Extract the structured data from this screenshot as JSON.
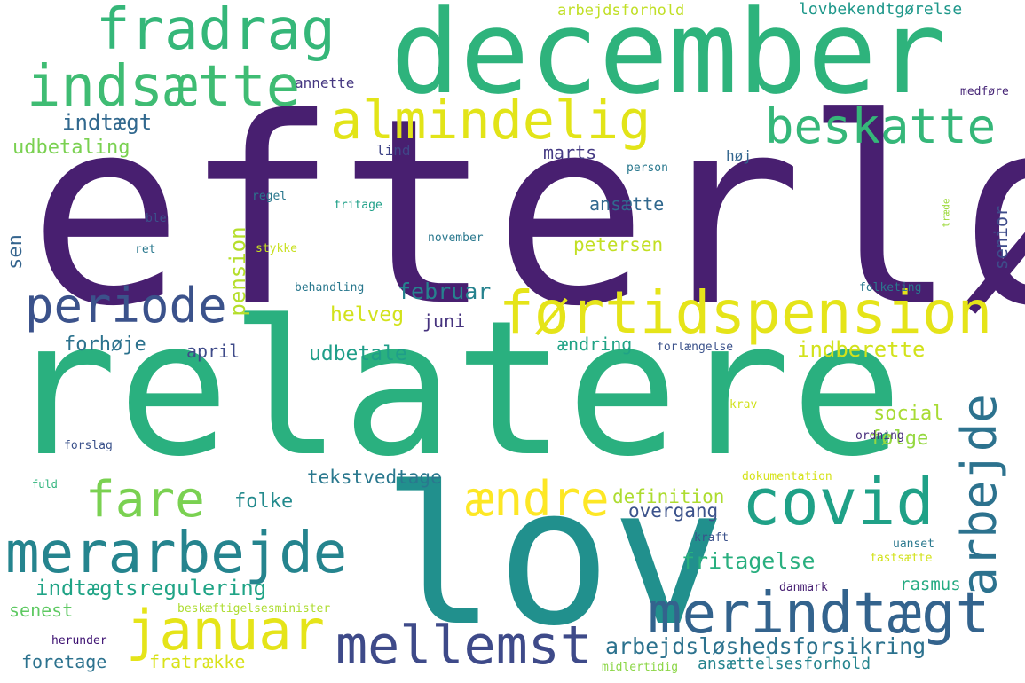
{
  "word_cloud": {
    "palette": [
      "#440154",
      "#3b528b",
      "#21918c",
      "#5ec962",
      "#fde725"
    ],
    "words": [
      {
        "id": "efterloen",
        "text": "efterløn",
        "color": "#481f70",
        "rank": 1
      },
      {
        "id": "relatere",
        "text": "relatere",
        "color": "#2ab07f",
        "rank": 2
      },
      {
        "id": "lov",
        "text": "lov",
        "color": "#21908d",
        "rank": 3
      },
      {
        "id": "december",
        "text": "december",
        "color": "#2eb37c",
        "rank": 4
      },
      {
        "id": "foertidspension",
        "text": "førtidspension",
        "color": "#e5e419",
        "rank": 5
      },
      {
        "id": "merindtaegt",
        "text": "merindtægt",
        "color": "#33638d",
        "rank": 6
      },
      {
        "id": "merarbejde",
        "text": "merarbejde",
        "color": "#25848e",
        "rank": 7
      },
      {
        "id": "covid",
        "text": "covid",
        "color": "#1fa187",
        "rank": 8
      },
      {
        "id": "fradrag",
        "text": "fradrag",
        "color": "#35b779",
        "rank": 9
      },
      {
        "id": "indsaette",
        "text": "indsætte",
        "color": "#3fbc73",
        "rank": 10
      },
      {
        "id": "almindelig",
        "text": "almindelig",
        "color": "#e2e418",
        "rank": 11
      },
      {
        "id": "arbejde",
        "text": "arbejde",
        "color": "#2c728e",
        "rank": 12
      },
      {
        "id": "mellemst",
        "text": "mellemst",
        "color": "#3e4a89",
        "rank": 13
      },
      {
        "id": "januar",
        "text": "januar",
        "color": "#e5e419",
        "rank": 14
      },
      {
        "id": "beskatte",
        "text": "beskatte",
        "color": "#35b779",
        "rank": 15
      },
      {
        "id": "periode",
        "text": "periode",
        "color": "#3b528b",
        "rank": 16
      },
      {
        "id": "aendre",
        "text": "ændre",
        "color": "#fde725",
        "rank": 17
      },
      {
        "id": "fare",
        "text": "fare",
        "color": "#7ad151",
        "rank": 18
      },
      {
        "id": "arbejdsloeshedsforsikring",
        "text": "arbejdsløshedsforsikring",
        "color": "#2c728e",
        "rank": 19
      },
      {
        "id": "indtaegtsregulering",
        "text": "indtægtsregulering",
        "color": "#20a486",
        "rank": 20
      },
      {
        "id": "fritagelse",
        "text": "fritagelse",
        "color": "#29af7f",
        "rank": 21
      },
      {
        "id": "indberette",
        "text": "indberette",
        "color": "#d2e21b",
        "rank": 22
      },
      {
        "id": "pension",
        "text": "pension",
        "color": "#b5de2b",
        "rank": 23
      },
      {
        "id": "indtaegt",
        "text": "indtægt",
        "color": "#31688e",
        "rank": 24
      },
      {
        "id": "udbetaling",
        "text": "udbetaling",
        "color": "#7ad151",
        "rank": 25
      },
      {
        "id": "helveg",
        "text": "helveg",
        "color": "#d2e21b",
        "rank": 26
      },
      {
        "id": "februar",
        "text": "februar",
        "color": "#26828e",
        "rank": 27
      },
      {
        "id": "udbetale",
        "text": "udbetale",
        "color": "#1f9e89",
        "rank": 28
      },
      {
        "id": "forhoeje",
        "text": "forhøje",
        "color": "#2c728e",
        "rank": 29
      },
      {
        "id": "folke",
        "text": "folke",
        "color": "#238a8d",
        "rank": 30
      },
      {
        "id": "social",
        "text": "social",
        "color": "#a8db34",
        "rank": 31
      },
      {
        "id": "foelge",
        "text": "følge",
        "color": "#95d840",
        "rank": 32
      },
      {
        "id": "tekstvedtage",
        "text": "tekstvedtage",
        "color": "#2a788e",
        "rank": 33
      },
      {
        "id": "definition",
        "text": "definition",
        "color": "#addc30",
        "rank": 34
      },
      {
        "id": "overgang",
        "text": "overgang",
        "color": "#3b528b",
        "rank": 35
      },
      {
        "id": "rasmus",
        "text": "rasmus",
        "color": "#25ab82",
        "rank": 36
      },
      {
        "id": "petersen",
        "text": "petersen",
        "color": "#c2df23",
        "rank": 37
      },
      {
        "id": "ansaette",
        "text": "ansætte",
        "color": "#31688e",
        "rank": 38
      },
      {
        "id": "marts",
        "text": "marts",
        "color": "#443a83",
        "rank": 39
      },
      {
        "id": "aendring",
        "text": "ændring",
        "color": "#20a386",
        "rank": 40
      },
      {
        "id": "april",
        "text": "april",
        "color": "#3e4a89",
        "rank": 41
      },
      {
        "id": "juni",
        "text": "juni",
        "color": "#46337e",
        "rank": 42
      },
      {
        "id": "sen",
        "text": "sen",
        "color": "#33638d",
        "rank": 43
      },
      {
        "id": "senior",
        "text": "senior",
        "color": "#3e4c8a",
        "rank": 44
      },
      {
        "id": "senest",
        "text": "senest",
        "color": "#5ec962",
        "rank": 45
      },
      {
        "id": "foretage",
        "text": "foretage",
        "color": "#2c728e",
        "rank": 46
      },
      {
        "id": "fratraekke",
        "text": "fratrække",
        "color": "#d8e219",
        "rank": 47
      },
      {
        "id": "ansaettelsesforhold",
        "text": "ansættelsesforhold",
        "color": "#25848e",
        "rank": 48
      },
      {
        "id": "arbejdsforhold",
        "text": "arbejdsforhold",
        "color": "#c0df25",
        "rank": 49
      },
      {
        "id": "lovbekendtgoerelse",
        "text": "lovbekendtgørelse",
        "color": "#1f988b",
        "rank": 50
      },
      {
        "id": "annette",
        "text": "annette",
        "color": "#453781",
        "rank": 51
      },
      {
        "id": "lind",
        "text": "lind",
        "color": "#404688",
        "rank": 52
      },
      {
        "id": "hoej",
        "text": "høj",
        "color": "#32658e",
        "rank": 53
      },
      {
        "id": "person",
        "text": "person",
        "color": "#2a788e",
        "rank": 54
      },
      {
        "id": "regel",
        "text": "regel",
        "color": "#2a788e",
        "rank": 55
      },
      {
        "id": "fritage",
        "text": "fritage",
        "color": "#1fa088",
        "rank": 56
      },
      {
        "id": "ble",
        "text": "ble",
        "color": "#3b528b",
        "rank": 57
      },
      {
        "id": "ret",
        "text": "ret",
        "color": "#2a788e",
        "rank": 58
      },
      {
        "id": "stykke",
        "text": "stykke",
        "color": "#c8e020",
        "rank": 59
      },
      {
        "id": "november",
        "text": "november",
        "color": "#2a788e",
        "rank": 60
      },
      {
        "id": "behandling",
        "text": "behandling",
        "color": "#2a788e",
        "rank": 61
      },
      {
        "id": "folketing",
        "text": "folketing",
        "color": "#2a788e",
        "rank": 62
      },
      {
        "id": "traede",
        "text": "træde",
        "color": "#9dd93b",
        "rank": 63
      },
      {
        "id": "medfoere",
        "text": "medføre",
        "color": "#482878",
        "rank": 64
      },
      {
        "id": "forlaengelse",
        "text": "forlængelse",
        "color": "#3b528b",
        "rank": 65
      },
      {
        "id": "krav",
        "text": "krav",
        "color": "#d0e11c",
        "rank": 66
      },
      {
        "id": "ordning",
        "text": "ordning",
        "color": "#472d7b",
        "rank": 67
      },
      {
        "id": "forslag",
        "text": "forslag",
        "color": "#3b528b",
        "rank": 68
      },
      {
        "id": "fuld",
        "text": "fuld",
        "color": "#2fb47c",
        "rank": 69
      },
      {
        "id": "dokumentation",
        "text": "dokumentation",
        "color": "#d5e21a",
        "rank": 70
      },
      {
        "id": "kraft",
        "text": "kraft",
        "color": "#3b528b",
        "rank": 71
      },
      {
        "id": "uanset",
        "text": "uanset",
        "color": "#2a788e",
        "rank": 72
      },
      {
        "id": "fastsaette",
        "text": "fastsætte",
        "color": "#d2e21b",
        "rank": 73
      },
      {
        "id": "danmark",
        "text": "danmark",
        "color": "#482173",
        "rank": 74
      },
      {
        "id": "beskaeftigelsesminister",
        "text": "beskæftigelsesminister",
        "color": "#addc30",
        "rank": 75
      },
      {
        "id": "herunder",
        "text": "herunder",
        "color": "#3b0f70",
        "rank": 76
      },
      {
        "id": "midlertidig",
        "text": "midlertidig",
        "color": "#8bd646",
        "rank": 77
      }
    ]
  }
}
